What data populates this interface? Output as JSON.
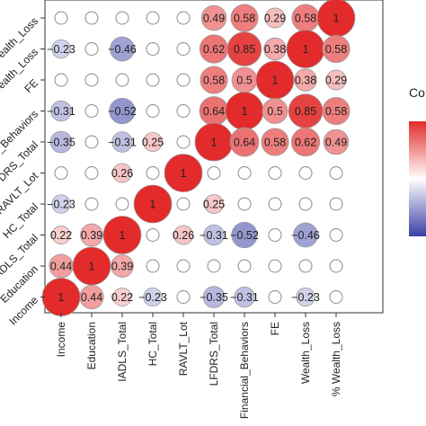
{
  "chart_data": {
    "type": "heatmap",
    "subtype": "correlation-circle-matrix",
    "title": "",
    "xlabel": "",
    "ylabel": "",
    "x_labels": [
      "Income",
      "Education",
      "IADLS_Total",
      "HC_Total",
      "RAVLT_Lot",
      "LFDRS_Total",
      "Financial_Behaviors",
      "FE",
      "Wealth_Loss",
      "% Wealth_Loss"
    ],
    "y_labels_top_to_bottom": [
      "% Wealth_Loss",
      "Wealth_Loss",
      "FE",
      "Financial_Behaviors",
      "LFDRS_Total",
      "RAVLT_Lot",
      "HC_Total",
      "IADLS_Total",
      "Education",
      "Income"
    ],
    "y_tick_text_visible": [
      "ealth_Loss",
      "Wealth_Loss",
      "FE",
      "ial_Behaviors",
      "FDRS_Total",
      "RAVLT_Lot",
      "HC_Total",
      "ADLS_Total",
      "Education",
      "Income"
    ],
    "matrix": [
      [
        null,
        null,
        null,
        null,
        null,
        0.49,
        0.58,
        0.29,
        0.58,
        1
      ],
      [
        -0.23,
        null,
        -0.46,
        null,
        null,
        0.62,
        0.85,
        0.38,
        1,
        0.58
      ],
      [
        null,
        null,
        null,
        null,
        null,
        0.58,
        0.5,
        1,
        0.38,
        0.29
      ],
      [
        -0.31,
        null,
        -0.52,
        null,
        null,
        0.64,
        1,
        0.5,
        0.85,
        0.58
      ],
      [
        -0.35,
        null,
        -0.31,
        0.25,
        null,
        1,
        0.64,
        0.58,
        0.62,
        0.49
      ],
      [
        null,
        null,
        0.26,
        null,
        1,
        null,
        null,
        null,
        null,
        null
      ],
      [
        -0.23,
        null,
        null,
        1,
        null,
        0.25,
        null,
        null,
        null,
        null
      ],
      [
        0.22,
        0.39,
        1,
        null,
        0.26,
        -0.31,
        -0.52,
        null,
        -0.46,
        null
      ],
      [
        0.44,
        1,
        0.39,
        null,
        null,
        null,
        null,
        null,
        null,
        null
      ],
      [
        1,
        0.44,
        0.22,
        -0.23,
        null,
        -0.35,
        -0.31,
        null,
        -0.23,
        null
      ]
    ],
    "legend": {
      "title_visible": "Co",
      "position": "right",
      "range": [
        -1,
        1
      ]
    },
    "colors": {
      "positive": "#e32b2b",
      "negative": "#3b3fa6",
      "neutral": "#ffffff",
      "outline": "#8a8a8a",
      "label_text": "#111111"
    }
  }
}
